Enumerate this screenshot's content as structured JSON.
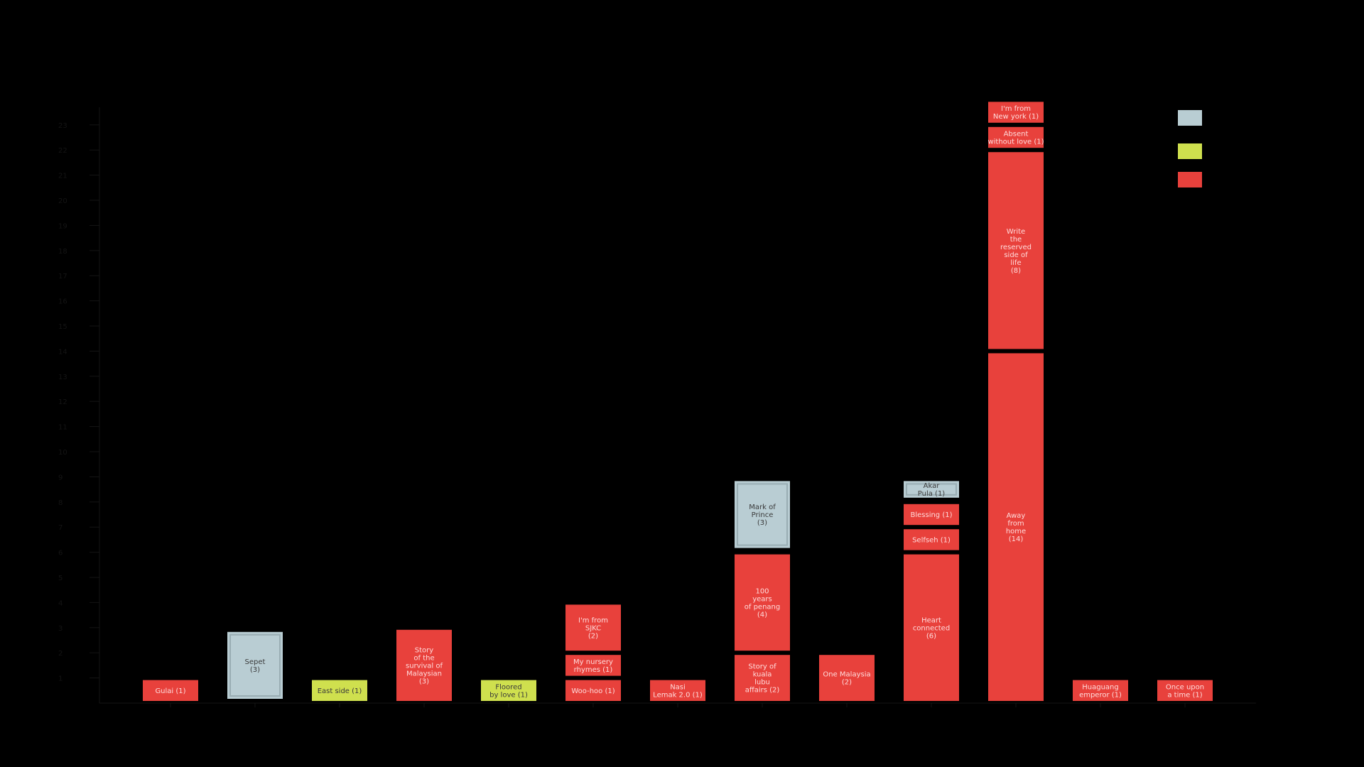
{
  "chart_data": {
    "type": "bar",
    "stacked": true,
    "ylim": [
      0,
      24
    ],
    "y_ticks": [
      1,
      2,
      3,
      4,
      5,
      6,
      7,
      8,
      9,
      10,
      11,
      12,
      13,
      14,
      15,
      16,
      17,
      18,
      19,
      20,
      21,
      22,
      23
    ],
    "categories": [
      "",
      "",
      "",
      "",
      "",
      "",
      "",
      "",
      "",
      "",
      "",
      "",
      ""
    ],
    "legend": {
      "position": "top-right",
      "entries": [
        {
          "key": "grey",
          "label": ""
        },
        {
          "key": "yellow",
          "label": ""
        },
        {
          "key": "red",
          "label": ""
        }
      ]
    },
    "colors": {
      "grey": "#b9cdd3",
      "yellow": "#cfe04e",
      "red": "#e8413c"
    },
    "stacks": [
      [
        {
          "label": "Gulai (1)",
          "value": 1,
          "color": "red"
        }
      ],
      [
        {
          "label": "Sepet\n(3)",
          "value": 3,
          "color": "grey"
        }
      ],
      [
        {
          "label": "East side (1)",
          "value": 1,
          "color": "yellow"
        }
      ],
      [
        {
          "label": "Story\nof the\nsurvival of\nMalaysian\n(3)",
          "value": 3,
          "color": "red"
        }
      ],
      [
        {
          "label": "Floored\nby love (1)",
          "value": 1,
          "color": "yellow"
        }
      ],
      [
        {
          "label": "Woo-hoo (1)",
          "value": 1,
          "color": "red"
        },
        {
          "label": "My nursery\nrhymes (1)",
          "value": 1,
          "color": "red"
        },
        {
          "label": "I'm from\nSJKC\n(2)",
          "value": 2,
          "color": "red"
        }
      ],
      [
        {
          "label": "Nasi\nLemak 2.0 (1)",
          "value": 1,
          "color": "red"
        }
      ],
      [
        {
          "label": "Story of\nkuala\nlubu\naffairs (2)",
          "value": 2,
          "color": "red"
        },
        {
          "label": "100\nyears\nof penang\n(4)",
          "value": 4,
          "color": "red"
        },
        {
          "label": "Mark of\nPrince\n(3)",
          "value": 3,
          "color": "grey"
        }
      ],
      [
        {
          "label": "One Malaysia\n(2)",
          "value": 2,
          "color": "red"
        }
      ],
      [
        {
          "label": "Heart\nconnected\n(6)",
          "value": 6,
          "color": "red"
        },
        {
          "label": "Selfseh (1)",
          "value": 1,
          "color": "red"
        },
        {
          "label": "Blessing (1)",
          "value": 1,
          "color": "red"
        },
        {
          "label": "Akar\nPula (1)",
          "value": 1,
          "color": "grey"
        }
      ],
      [
        {
          "label": "Away\nfrom\nhome\n(14)",
          "value": 14,
          "color": "red"
        },
        {
          "label": "Write\nthe\nreserved\nside of\nlife\n(8)",
          "value": 8,
          "color": "red"
        },
        {
          "label": "Absent\nwithout love (1)",
          "value": 1,
          "color": "red"
        },
        {
          "label": "I'm from\nNew york (1)",
          "value": 1,
          "color": "red"
        }
      ],
      [
        {
          "label": "Huaguang\nemperor (1)",
          "value": 1,
          "color": "red"
        }
      ],
      [
        {
          "label": "Once upon\na time (1)",
          "value": 1,
          "color": "red"
        }
      ]
    ]
  }
}
